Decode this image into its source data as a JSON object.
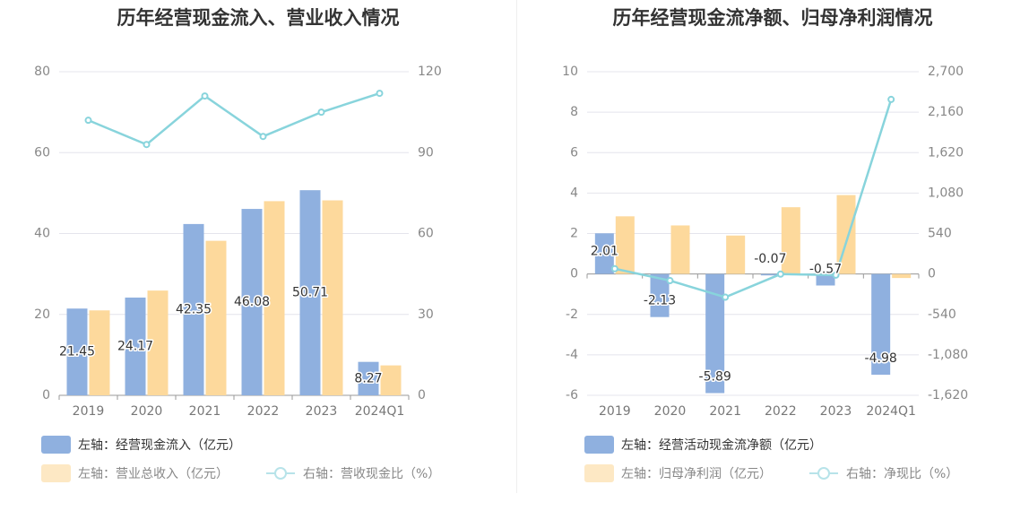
{
  "chart_data": [
    {
      "type": "bar",
      "title": "历年经营现金流入、营业收入情况",
      "categories": [
        "2019",
        "2020",
        "2021",
        "2022",
        "2023",
        "2024Q1"
      ],
      "left_axis": {
        "ticks": [
          "0",
          "20",
          "40",
          "60",
          "80"
        ],
        "min": 0,
        "max": 80
      },
      "right_axis": {
        "ticks": [
          "0",
          "30",
          "60",
          "90",
          "120"
        ],
        "min": 0,
        "max": 120
      },
      "series": [
        {
          "name": "左轴：经营现金流入（亿元）",
          "axis": "left",
          "kind": "bar",
          "color": "#8fb0df",
          "values": [
            21.45,
            24.17,
            42.35,
            46.08,
            50.71,
            8.27
          ],
          "labels": [
            "21.45",
            "24.17",
            "42.35",
            "46.08",
            "50.71",
            "8.27"
          ]
        },
        {
          "name": "左轴：营业总收入（亿元）",
          "axis": "left",
          "kind": "bar",
          "color": "#fdd99c",
          "values": [
            21.0,
            25.9,
            38.2,
            48.0,
            48.2,
            7.4
          ]
        },
        {
          "name": "右轴：营收现金比（%）",
          "axis": "right",
          "kind": "line",
          "color": "#88d4dc",
          "values": [
            102,
            93,
            111,
            96,
            105,
            112
          ]
        }
      ]
    },
    {
      "type": "bar",
      "title": "历年经营现金流净额、归母净利润情况",
      "categories": [
        "2019",
        "2020",
        "2021",
        "2022",
        "2023",
        "2024Q1"
      ],
      "left_axis": {
        "ticks": [
          "-6",
          "-4",
          "-2",
          "0",
          "2",
          "4",
          "6",
          "8",
          "10"
        ],
        "min": -6,
        "max": 10
      },
      "right_axis": {
        "ticks": [
          "-1,620",
          "-1,080",
          "-540",
          "0",
          "540",
          "1,080",
          "1,620",
          "2,160",
          "2,700"
        ],
        "min": -1620,
        "max": 2700
      },
      "series": [
        {
          "name": "左轴：经营活动现金流净额（亿元）",
          "axis": "left",
          "kind": "bar",
          "color": "#8fb0df",
          "values": [
            2.01,
            -2.13,
            -5.89,
            -0.07,
            -0.57,
            -4.98
          ],
          "labels": [
            "2.01",
            "-2.13",
            "-5.89",
            "-0.07",
            "-0.57",
            "-4.98"
          ]
        },
        {
          "name": "左轴：归母净利润（亿元）",
          "axis": "left",
          "kind": "bar",
          "color": "#fdd99c",
          "values": [
            2.85,
            2.4,
            1.9,
            3.3,
            3.9,
            -0.2
          ]
        },
        {
          "name": "右轴：净现比（%）",
          "axis": "right",
          "kind": "line",
          "color": "#88d4dc",
          "values": [
            70,
            -89,
            -310,
            -2,
            -15,
            2330
          ]
        }
      ]
    }
  ]
}
